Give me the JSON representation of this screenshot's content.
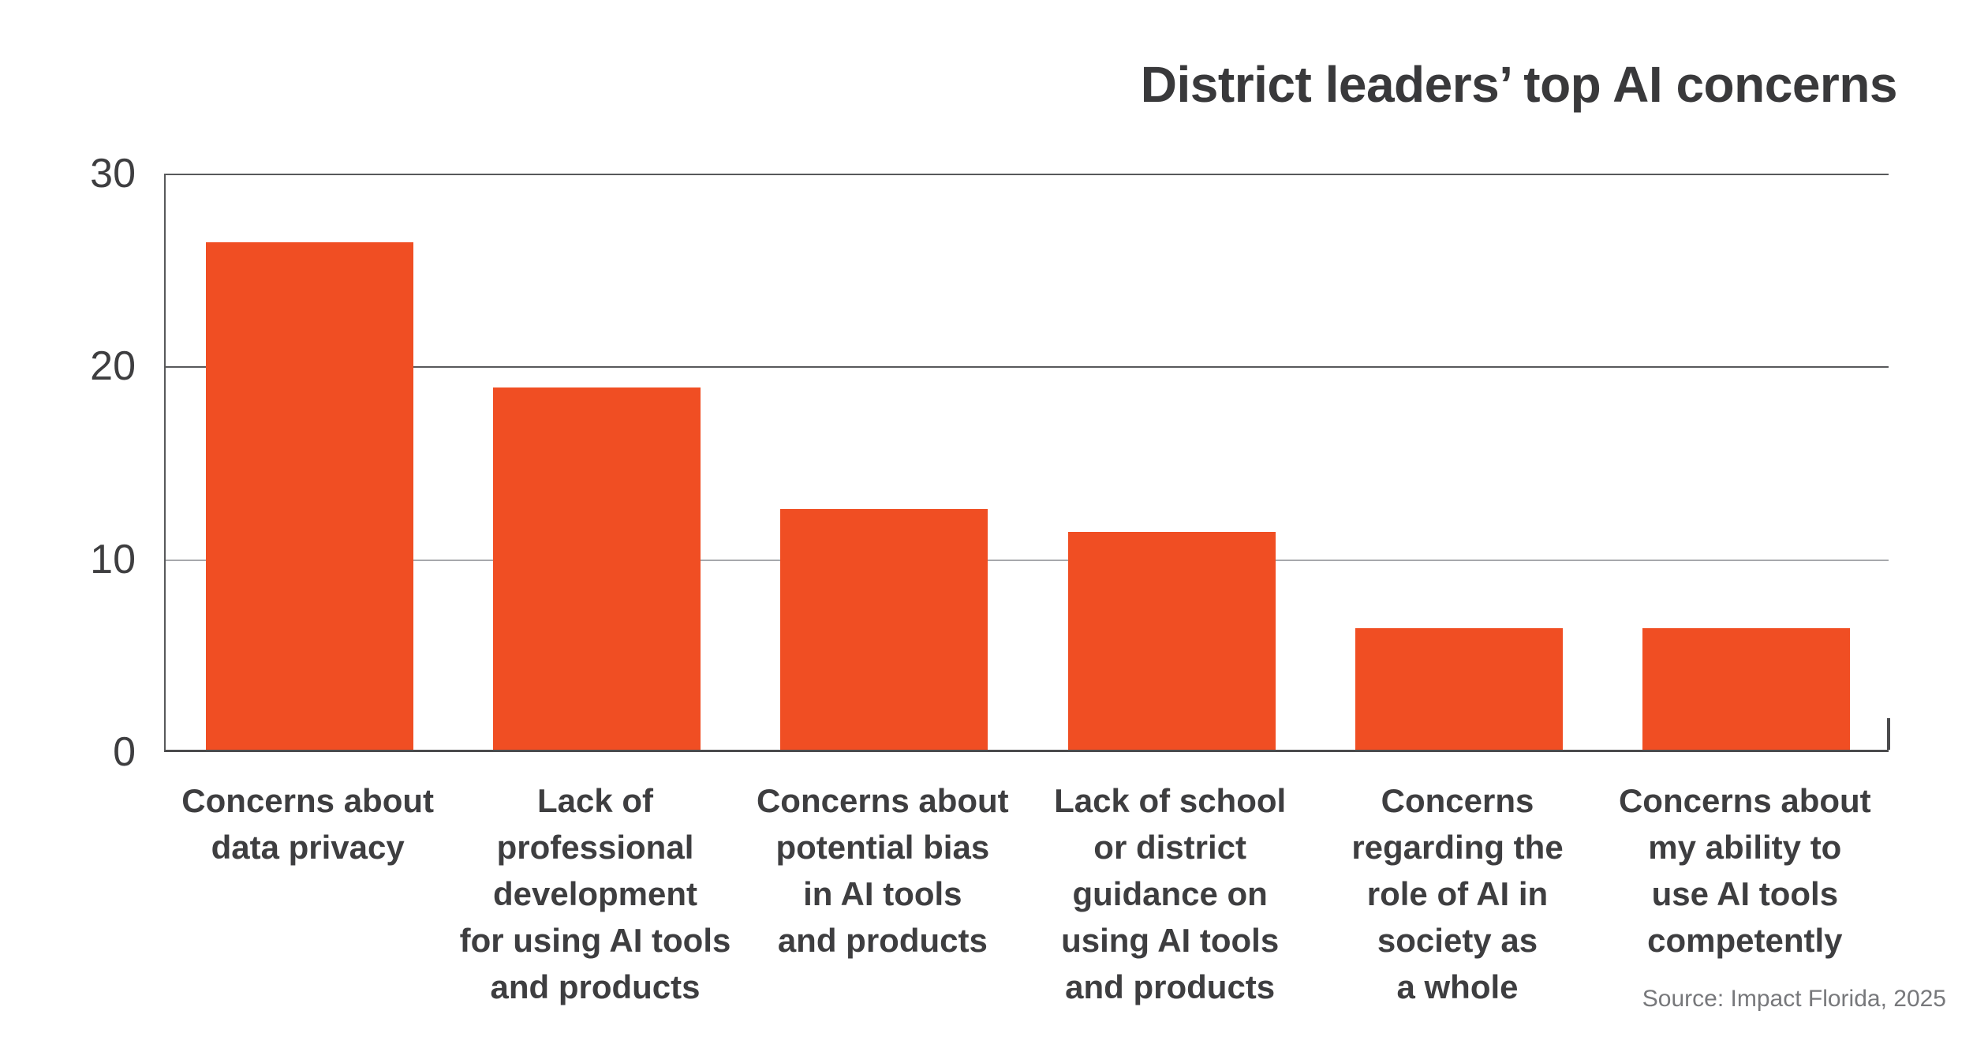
{
  "title": "District leaders’ top AI concerns",
  "source": "Source: Impact Florida, 2025",
  "chart_data": {
    "type": "bar",
    "title": "District leaders’ top AI concerns",
    "categories": [
      "Concerns about\ndata privacy",
      "Lack of\nprofessional\ndevelopment\nfor using AI tools\nand products",
      "Concerns about\npotential bias\nin AI tools\nand products",
      "Lack of school\nor district\nguidance on\nusing AI tools\nand products",
      "Concerns\nregarding the\nrole of AI in\nsociety as\na whole",
      "Concerns about\nmy ability to\nuse AI tools\ncompetently"
    ],
    "values": [
      26.3,
      18.8,
      12.5,
      11.3,
      6.3,
      6.3
    ],
    "xlabel": "",
    "ylabel": "",
    "ylim": [
      0,
      30
    ],
    "yticks": [
      0,
      10,
      20,
      30
    ],
    "grid": "horizontal",
    "legend": "none",
    "bar_color": "#F04E23",
    "source": "Source: Impact Florida, 2025"
  },
  "colors": {
    "bar": "#F04E23",
    "title_text": "#39393B",
    "label_text": "#3E3E40",
    "grid_dark": "#58595B",
    "grid_light": "#A7A9AC",
    "axis": "#4B4B4D",
    "source_text": "#77787B",
    "background": "#FFFFFF"
  }
}
